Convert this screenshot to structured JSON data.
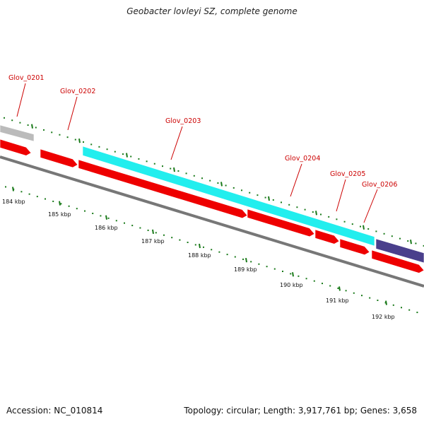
{
  "title": "Geobacter lovleyi SZ, complete genome",
  "footer": {
    "accession": "Accession: NC_010814",
    "info": "Topology: circular; Length: 3,917,761 bp; Genes: 3,658"
  },
  "colors": {
    "cds": "#ee0000",
    "highlight": "#22eeee",
    "grey_feature": "#bbbbbb",
    "purple_feature": "#4a3f8c",
    "backbone": "#777777",
    "tick": "#1a7a1a",
    "label": "#cc0000"
  },
  "gene_labels": [
    "Glov_0201",
    "Glov_0202",
    "Glov_0203",
    "Glov_0204",
    "Glov_0205",
    "Glov_0206"
  ],
  "kbp_labels": [
    "184 kbp",
    "185 kbp",
    "186 kbp",
    "187 kbp",
    "188 kbp",
    "189 kbp",
    "190 kbp",
    "191 kbp",
    "192 kbp"
  ]
}
